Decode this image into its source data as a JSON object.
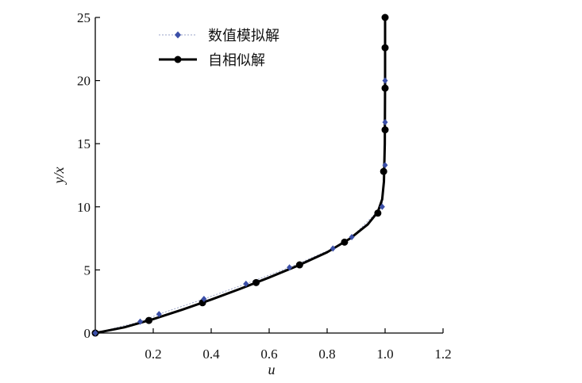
{
  "chart_data": {
    "type": "line",
    "xlabel": "u",
    "ylabel": "y/x",
    "xlim": [
      0,
      1.2
    ],
    "ylim": [
      0,
      25
    ],
    "xticks": [
      "0.2",
      "0.4",
      "0.6",
      "0.8",
      "1.0",
      "1.2"
    ],
    "yticks": [
      "0",
      "5",
      "10",
      "15",
      "20",
      "25"
    ],
    "grid": false,
    "legend_position": "top-center",
    "series": [
      {
        "name": "数值模拟解",
        "style": "dotted-line-with-diamond-markers",
        "color": "#3b4fa8",
        "points": [
          {
            "x": 0.0,
            "y": 0.0
          },
          {
            "x": 0.155,
            "y": 0.9
          },
          {
            "x": 0.22,
            "y": 1.5
          },
          {
            "x": 0.375,
            "y": 2.7
          },
          {
            "x": 0.52,
            "y": 3.9
          },
          {
            "x": 0.67,
            "y": 5.2
          },
          {
            "x": 0.82,
            "y": 6.7
          },
          {
            "x": 0.885,
            "y": 7.6
          },
          {
            "x": 0.99,
            "y": 10.0
          },
          {
            "x": 1.0,
            "y": 13.3
          },
          {
            "x": 1.0,
            "y": 16.7
          },
          {
            "x": 1.0,
            "y": 20.0
          }
        ]
      },
      {
        "name": "自相似解",
        "style": "solid-thick-line-with-circle-markers",
        "color": "#000000",
        "points": [
          {
            "x": 0.0,
            "y": 0.0
          },
          {
            "x": 0.185,
            "y": 1.0
          },
          {
            "x": 0.37,
            "y": 2.4
          },
          {
            "x": 0.555,
            "y": 4.0
          },
          {
            "x": 0.705,
            "y": 5.4
          },
          {
            "x": 0.86,
            "y": 7.2
          },
          {
            "x": 0.975,
            "y": 9.5
          },
          {
            "x": 0.995,
            "y": 12.8
          },
          {
            "x": 1.0,
            "y": 16.1
          },
          {
            "x": 1.0,
            "y": 19.4
          },
          {
            "x": 1.0,
            "y": 22.6
          },
          {
            "x": 1.0,
            "y": 25.0
          }
        ],
        "curve": [
          {
            "x": 0.0,
            "y": 0.0
          },
          {
            "x": 0.1,
            "y": 0.45
          },
          {
            "x": 0.2,
            "y": 1.1
          },
          {
            "x": 0.3,
            "y": 1.85
          },
          {
            "x": 0.4,
            "y": 2.65
          },
          {
            "x": 0.5,
            "y": 3.5
          },
          {
            "x": 0.6,
            "y": 4.4
          },
          {
            "x": 0.7,
            "y": 5.35
          },
          {
            "x": 0.8,
            "y": 6.4
          },
          {
            "x": 0.88,
            "y": 7.5
          },
          {
            "x": 0.94,
            "y": 8.6
          },
          {
            "x": 0.975,
            "y": 9.6
          },
          {
            "x": 0.99,
            "y": 10.6
          },
          {
            "x": 0.996,
            "y": 12.0
          },
          {
            "x": 0.999,
            "y": 15.0
          },
          {
            "x": 1.0,
            "y": 20.0
          },
          {
            "x": 1.0,
            "y": 25.0
          }
        ]
      }
    ]
  }
}
